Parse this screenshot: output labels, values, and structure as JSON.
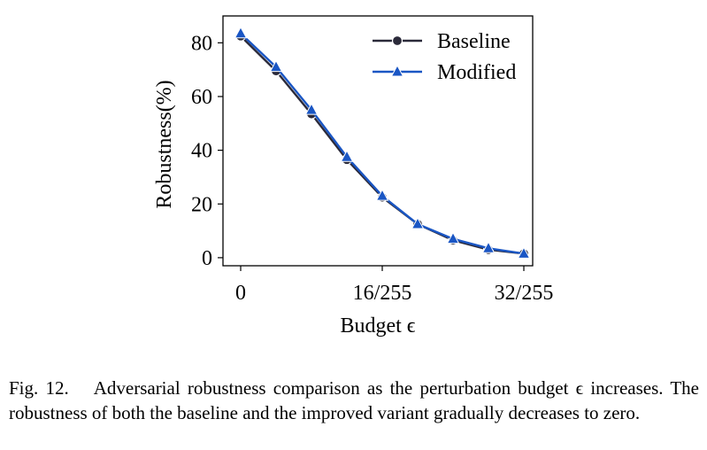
{
  "chart_data": {
    "type": "line",
    "x": [
      0,
      4,
      8,
      12,
      16,
      20,
      24,
      28,
      32
    ],
    "xunit_note": "x in units of 1/255",
    "series": [
      {
        "name": "Baseline",
        "color": "#2b2a3a",
        "marker": "circle",
        "values": [
          82.5,
          69.5,
          53.5,
          36.5,
          22.5,
          12.5,
          6.5,
          3.0,
          1.5
        ]
      },
      {
        "name": "Modified",
        "color": "#1a56c4",
        "marker": "triangle",
        "values": [
          83.5,
          71.0,
          55.0,
          37.5,
          23.0,
          12.5,
          7.0,
          3.5,
          1.5
        ]
      }
    ],
    "xlabel": "Budget ϵ",
    "ylabel": "Robustness(%)",
    "xticks": [
      0,
      16,
      32
    ],
    "xtick_labels": [
      "0",
      "16/255",
      "32/255"
    ],
    "yticks": [
      0,
      20,
      40,
      60,
      80
    ],
    "yticklabels": [
      "0",
      "20",
      "40",
      "60",
      "80"
    ],
    "xlim": [
      -2,
      33
    ],
    "ylim": [
      -3,
      90
    ],
    "legend_position": "top-right",
    "grid": false
  },
  "caption": {
    "label": "Fig. 12.",
    "text": "Adversarial robustness comparison as the perturbation budget ϵ increases. The robustness of both the baseline and the improved variant gradually decreases to zero."
  }
}
